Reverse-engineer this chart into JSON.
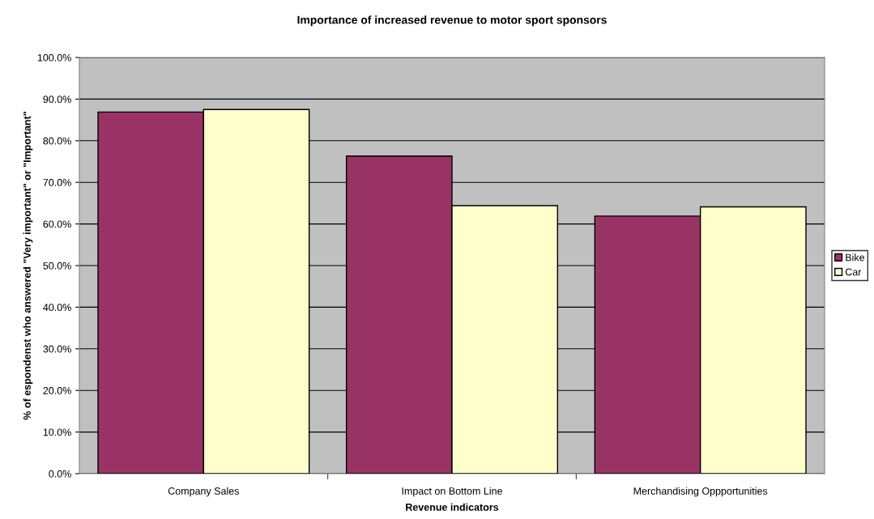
{
  "chart_data": {
    "type": "bar",
    "title": "Importance of increased revenue to motor sport sponsors",
    "xlabel": "Revenue indicators",
    "ylabel": "% of espondenst who answered \"Very important\" or \"Important\"",
    "categories": [
      "Company Sales",
      "Impact on Bottom Line",
      "Merchandising Oppportunities"
    ],
    "series": [
      {
        "name": "Bike",
        "color": "#993366",
        "values": [
          86.9,
          76.3,
          61.9
        ]
      },
      {
        "name": "Car",
        "color": "#ffffcc",
        "values": [
          87.5,
          64.4,
          64.1
        ]
      }
    ],
    "ylim": [
      0,
      100
    ],
    "yticks": [
      {
        "value": 0,
        "label": "0.0%"
      },
      {
        "value": 10,
        "label": "10.0%"
      },
      {
        "value": 20,
        "label": "20.0%"
      },
      {
        "value": 30,
        "label": "30.0%"
      },
      {
        "value": 40,
        "label": "40.0%"
      },
      {
        "value": 50,
        "label": "50.0%"
      },
      {
        "value": 60,
        "label": "60.0%"
      },
      {
        "value": 70,
        "label": "70.0%"
      },
      {
        "value": 80,
        "label": "80.0%"
      },
      {
        "value": 90,
        "label": "90.0%"
      },
      {
        "value": 100,
        "label": "100.0%"
      }
    ],
    "grid": "y",
    "legend": "right"
  }
}
